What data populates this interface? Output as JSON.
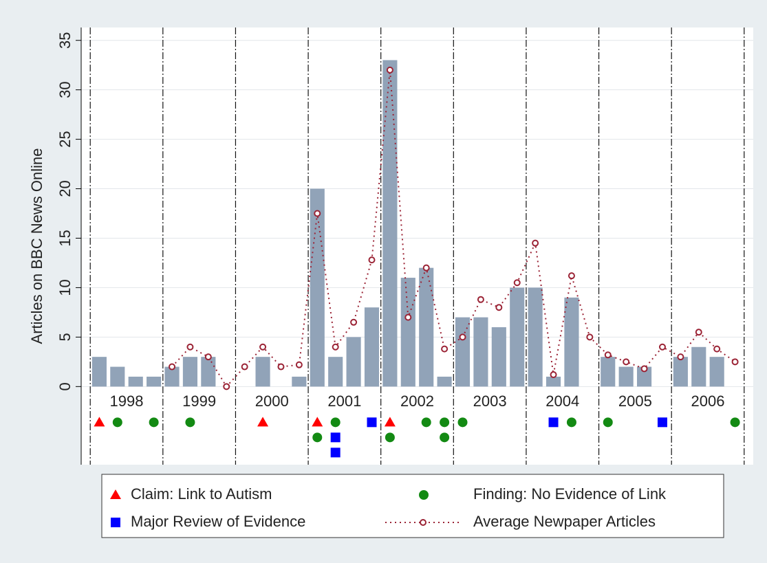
{
  "chart_data": {
    "type": "bar",
    "y_label": "Articles on BBC News Online",
    "x": [
      1998,
      1998.25,
      1998.5,
      1998.75,
      1999,
      1999.25,
      1999.5,
      1999.75,
      2000,
      2000.25,
      2000.5,
      2000.75,
      2001,
      2001.25,
      2001.5,
      2001.75,
      2002,
      2002.25,
      2002.5,
      2002.75,
      2003,
      2003.25,
      2003.5,
      2003.75,
      2004,
      2004.25,
      2004.5,
      2004.75,
      2005,
      2005.25,
      2005.5,
      2005.75,
      2006,
      2006.25,
      2006.5,
      2006.75
    ],
    "values": [
      3,
      2,
      1,
      1,
      2,
      3,
      3,
      0,
      0,
      3,
      0,
      1,
      20,
      3,
      5,
      8,
      33,
      11,
      12,
      1,
      7,
      7,
      6,
      10,
      10,
      1,
      9,
      0,
      3,
      2,
      2,
      0,
      3,
      4,
      3,
      0
    ],
    "color": "#91a3b8",
    "overlay": {
      "name": "Average Newpaper Articles",
      "color": "#9b2335",
      "values": [
        null,
        null,
        null,
        null,
        2,
        4,
        3,
        0,
        2,
        4,
        2,
        2.2,
        17.5,
        4,
        6.5,
        12.8,
        32,
        7,
        12,
        3.8,
        5,
        8.8,
        8,
        10.5,
        14.5,
        1.2,
        11.2,
        5,
        3.2,
        2.5,
        1.8,
        4,
        3,
        5.5,
        3.8,
        2.5
      ]
    },
    "events": [
      {
        "name": "Claim: Link to Autism",
        "color": "#ff0000",
        "shape": "triangle",
        "x": [
          1998,
          2000.25,
          2001,
          2002
        ]
      },
      {
        "name": "Finding: No Evidence of Link",
        "color": "#138a13",
        "shape": "circle",
        "x": [
          1998.25,
          1998.75,
          1999.25,
          2001,
          2001.25,
          2002,
          2002.5,
          2002.75,
          2002.75,
          2003,
          2004.5,
          2005,
          2006.75
        ]
      },
      {
        "name": "Major Review of Evidence",
        "color": "#0000ff",
        "shape": "square",
        "x": [
          2001.25,
          2001.25,
          2001.75,
          2004.25,
          2005.75
        ]
      }
    ],
    "xlim": [
      1997.75,
      2007
    ],
    "ylim": [
      -7.9,
      36.3
    ],
    "yticks": [
      0,
      5,
      10,
      15,
      20,
      25,
      30,
      35
    ],
    "xticks": [
      {
        "value": 1998.375,
        "label": "1998"
      },
      {
        "value": 1999.375,
        "label": "1999"
      },
      {
        "value": 2000.375,
        "label": "2000"
      },
      {
        "value": 2001.375,
        "label": "2001"
      },
      {
        "value": 2002.375,
        "label": "2002"
      },
      {
        "value": 2003.375,
        "label": "2003"
      },
      {
        "value": 2004.375,
        "label": "2004"
      },
      {
        "value": 2005.375,
        "label": "2005"
      },
      {
        "value": 2006.375,
        "label": "2006"
      }
    ],
    "xgrid": [
      1997.875,
      1998.875,
      1999.875,
      2000.875,
      2001.875,
      2002.875,
      2003.875,
      2004.875,
      2005.875,
      2006.875
    ],
    "grid": true
  }
}
